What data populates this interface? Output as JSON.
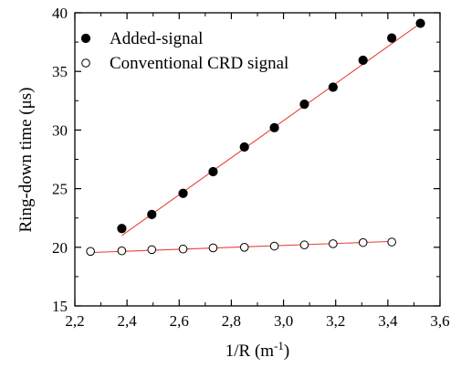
{
  "chart_data": {
    "type": "scatter",
    "xlabel": "1/R (m",
    "xlabel_superscript": "-1",
    "xlabel_suffix": ")",
    "ylabel": "Ring-down time (μs)",
    "xlim": [
      2.2,
      3.6
    ],
    "ylim": [
      15,
      40
    ],
    "x_ticks": [
      "2,2",
      "2,4",
      "2,6",
      "2,8",
      "3,0",
      "3,2",
      "3,4",
      "3,6"
    ],
    "y_ticks": [
      "15",
      "20",
      "25",
      "30",
      "35",
      "40"
    ],
    "x_tick_values": [
      2.2,
      2.4,
      2.6,
      2.8,
      3.0,
      3.2,
      3.4,
      3.6
    ],
    "y_tick_values": [
      15,
      20,
      25,
      30,
      35,
      40
    ],
    "legend_position": "top-left",
    "series": [
      {
        "name": "Added-signal",
        "marker": "filled-circle",
        "color": "#000000",
        "x": [
          2.38,
          2.495,
          2.615,
          2.73,
          2.85,
          2.965,
          3.08,
          3.19,
          3.305,
          3.415,
          3.525
        ],
        "y": [
          21.6,
          22.8,
          24.6,
          26.45,
          28.55,
          30.2,
          32.2,
          33.65,
          35.95,
          37.85,
          39.1
        ],
        "fit": {
          "x": [
            2.38,
            3.525
          ],
          "y": [
            21.0,
            39.1
          ],
          "color": "#e8443a"
        }
      },
      {
        "name": "Conventional CRD signal",
        "marker": "open-circle",
        "color": "#000000",
        "x": [
          2.26,
          2.38,
          2.495,
          2.615,
          2.73,
          2.85,
          2.965,
          3.08,
          3.19,
          3.305,
          3.415
        ],
        "y": [
          19.65,
          19.7,
          19.8,
          19.85,
          19.95,
          20.0,
          20.1,
          20.2,
          20.3,
          20.4,
          20.45
        ],
        "fit": {
          "x": [
            2.26,
            3.415
          ],
          "y": [
            19.55,
            20.5
          ],
          "color": "#e8443a"
        }
      }
    ]
  }
}
